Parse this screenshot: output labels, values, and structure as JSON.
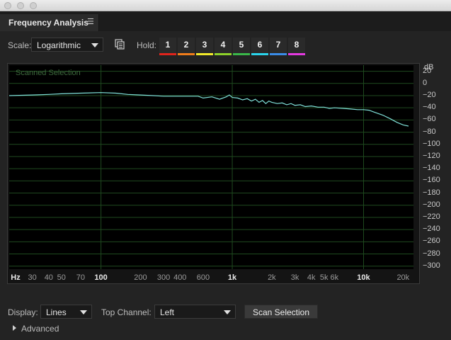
{
  "panel": {
    "tab_title": "Frequency Analysis",
    "tab_menu_icon": "☰"
  },
  "controls": {
    "scale_label": "Scale:",
    "scale_value": "Logarithmic",
    "hold_label": "Hold:",
    "hold_buttons": [
      {
        "label": "1",
        "color": "#e0241c"
      },
      {
        "label": "2",
        "color": "#f07c1a"
      },
      {
        "label": "3",
        "color": "#f2ea2a"
      },
      {
        "label": "4",
        "color": "#8ed22a"
      },
      {
        "label": "5",
        "color": "#3ab84a"
      },
      {
        "label": "6",
        "color": "#2ad4ec"
      },
      {
        "label": "7",
        "color": "#3a8ce8"
      },
      {
        "label": "8",
        "color": "#e43ae0"
      }
    ]
  },
  "graph": {
    "overlay_label": "Scanned Selection",
    "y_unit": "dB",
    "y_ticks": [
      "20",
      "0",
      "−20",
      "−40",
      "−60",
      "−80",
      "−100",
      "−120",
      "−140",
      "−160",
      "−180",
      "−200",
      "−220",
      "−240",
      "−260",
      "−280",
      "−300"
    ],
    "x_unit": "Hz",
    "x_ticks": [
      "30",
      "40",
      "50",
      "70",
      "100",
      "200",
      "300",
      "400",
      "600",
      "1k",
      "2k",
      "3k",
      "4k",
      "5k",
      "6k",
      "10k",
      "20k"
    ],
    "curve_color": "#7fe0d8",
    "grid_color": "#1f4a1f"
  },
  "chart_data": {
    "type": "line",
    "title": "",
    "xlabel": "Hz",
    "ylabel": "dB",
    "x_scale": "log",
    "xlim": [
      20,
      24000
    ],
    "ylim": [
      -305,
      30
    ],
    "grid": true,
    "series": [
      {
        "x": [
          20,
          30,
          40,
          50,
          70,
          100,
          130,
          160,
          200,
          250,
          300,
          400,
          500,
          550,
          600,
          700,
          800,
          900,
          950,
          1000,
          1100,
          1200,
          1300,
          1400,
          1500,
          1600,
          1700,
          1800,
          1900,
          2000,
          2200,
          2400,
          2600,
          2800,
          3000,
          3300,
          3600,
          4000,
          4500,
          5000,
          5500,
          6000,
          7000,
          8000,
          9000,
          10000,
          11000,
          12000,
          14000,
          16000,
          18000,
          20000,
          22000
        ],
        "y": [
          -20,
          -19,
          -18,
          -17,
          -16,
          -15,
          -16,
          -18,
          -19,
          -20,
          -21,
          -21,
          -21,
          -21,
          -24,
          -22,
          -26,
          -22,
          -19,
          -23,
          -24,
          -27,
          -25,
          -29,
          -26,
          -31,
          -28,
          -33,
          -29,
          -31,
          -33,
          -32,
          -35,
          -33,
          -36,
          -35,
          -38,
          -37,
          -39,
          -39,
          -41,
          -40,
          -41,
          -42,
          -43,
          -43,
          -44,
          -47,
          -52,
          -58,
          -64,
          -68,
          -70
        ]
      }
    ]
  },
  "bottom": {
    "display_label": "Display:",
    "display_value": "Lines",
    "top_channel_label": "Top Channel:",
    "top_channel_value": "Left",
    "scan_button": "Scan Selection",
    "advanced_label": "Advanced"
  }
}
